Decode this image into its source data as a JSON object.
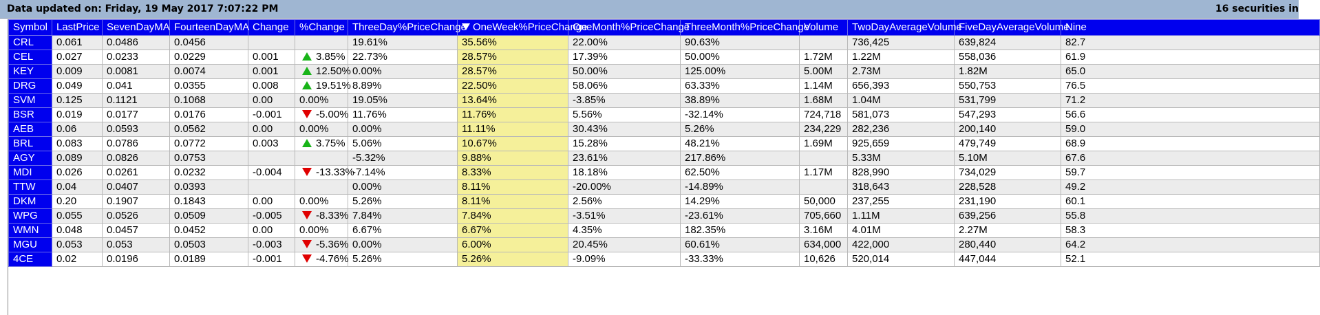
{
  "header": {
    "updated_text": "Data updated on: Friday, 19 May 2017 7:07:22 PM",
    "count_text": "16 securities in"
  },
  "colors": {
    "header_bg": "#0000ee",
    "highlight_column": "#f5f09a",
    "up_arrow": "#18b418",
    "down_arrow": "#e00000",
    "title_bar": "#9fb6d2"
  },
  "table": {
    "sorted_column": "OneWeek%PriceChange",
    "sort_direction": "descending",
    "columns": [
      "Symbol",
      "LastPrice",
      "SevenDayMA",
      "FourteenDayMA",
      "Change",
      "%Change",
      "ThreeDay%PriceChange",
      "OneWeek%PriceChange",
      "OneMonth%PriceChange",
      "ThreeMonth%PriceChange",
      "Volume",
      "TwoDayAverageVolume",
      "FiveDayAverageVolume",
      "Nine"
    ],
    "rows": [
      {
        "Symbol": "CRL",
        "LastPrice": "0.061",
        "SevenDayMA": "0.0486",
        "FourteenDayMA": "0.0456",
        "Change": "",
        "PctChange": "",
        "Dir": "",
        "ThreeDay": "19.61%",
        "OneWeek": "35.56%",
        "OneMonth": "22.00%",
        "ThreeMonth": "90.63%",
        "Volume": "",
        "TwoDayAvgVol": "736,425",
        "FiveDayAvgVol": "639,824",
        "Nine": "82.7"
      },
      {
        "Symbol": "CEL",
        "LastPrice": "0.027",
        "SevenDayMA": "0.0233",
        "FourteenDayMA": "0.0229",
        "Change": "0.001",
        "PctChange": "3.85%",
        "Dir": "up",
        "ThreeDay": "22.73%",
        "OneWeek": "28.57%",
        "OneMonth": "17.39%",
        "ThreeMonth": "50.00%",
        "Volume": "1.72M",
        "TwoDayAvgVol": "1.22M",
        "FiveDayAvgVol": "558,036",
        "Nine": "61.9"
      },
      {
        "Symbol": "KEY",
        "LastPrice": "0.009",
        "SevenDayMA": "0.0081",
        "FourteenDayMA": "0.0074",
        "Change": "0.001",
        "PctChange": "12.50%",
        "Dir": "up",
        "ThreeDay": "0.00%",
        "OneWeek": "28.57%",
        "OneMonth": "50.00%",
        "ThreeMonth": "125.00%",
        "Volume": "5.00M",
        "TwoDayAvgVol": "2.73M",
        "FiveDayAvgVol": "1.82M",
        "Nine": "65.0"
      },
      {
        "Symbol": "DRG",
        "LastPrice": "0.049",
        "SevenDayMA": "0.041",
        "FourteenDayMA": "0.0355",
        "Change": "0.008",
        "PctChange": "19.51%",
        "Dir": "up",
        "ThreeDay": "8.89%",
        "OneWeek": "22.50%",
        "OneMonth": "58.06%",
        "ThreeMonth": "63.33%",
        "Volume": "1.14M",
        "TwoDayAvgVol": "656,393",
        "FiveDayAvgVol": "550,753",
        "Nine": "76.5"
      },
      {
        "Symbol": "SVM",
        "LastPrice": "0.125",
        "SevenDayMA": "0.1121",
        "FourteenDayMA": "0.1068",
        "Change": "0.00",
        "PctChange": "0.00%",
        "Dir": "",
        "ThreeDay": "19.05%",
        "OneWeek": "13.64%",
        "OneMonth": "-3.85%",
        "ThreeMonth": "38.89%",
        "Volume": "1.68M",
        "TwoDayAvgVol": "1.04M",
        "FiveDayAvgVol": "531,799",
        "Nine": "71.2"
      },
      {
        "Symbol": "BSR",
        "LastPrice": "0.019",
        "SevenDayMA": "0.0177",
        "FourteenDayMA": "0.0176",
        "Change": "-0.001",
        "PctChange": "-5.00%",
        "Dir": "down",
        "ThreeDay": "11.76%",
        "OneWeek": "11.76%",
        "OneMonth": "5.56%",
        "ThreeMonth": "-32.14%",
        "Volume": "724,718",
        "TwoDayAvgVol": "581,073",
        "FiveDayAvgVol": "547,293",
        "Nine": "56.6"
      },
      {
        "Symbol": "AEB",
        "LastPrice": "0.06",
        "SevenDayMA": "0.0593",
        "FourteenDayMA": "0.0562",
        "Change": "0.00",
        "PctChange": "0.00%",
        "Dir": "",
        "ThreeDay": "0.00%",
        "OneWeek": "11.11%",
        "OneMonth": "30.43%",
        "ThreeMonth": "5.26%",
        "Volume": "234,229",
        "TwoDayAvgVol": "282,236",
        "FiveDayAvgVol": "200,140",
        "Nine": "59.0"
      },
      {
        "Symbol": "BRL",
        "LastPrice": "0.083",
        "SevenDayMA": "0.0786",
        "FourteenDayMA": "0.0772",
        "Change": "0.003",
        "PctChange": "3.75%",
        "Dir": "up",
        "ThreeDay": "5.06%",
        "OneWeek": "10.67%",
        "OneMonth": "15.28%",
        "ThreeMonth": "48.21%",
        "Volume": "1.69M",
        "TwoDayAvgVol": "925,659",
        "FiveDayAvgVol": "479,749",
        "Nine": "68.9"
      },
      {
        "Symbol": "AGY",
        "LastPrice": "0.089",
        "SevenDayMA": "0.0826",
        "FourteenDayMA": "0.0753",
        "Change": "",
        "PctChange": "",
        "Dir": "",
        "ThreeDay": "-5.32%",
        "OneWeek": "9.88%",
        "OneMonth": "23.61%",
        "ThreeMonth": "217.86%",
        "Volume": "",
        "TwoDayAvgVol": "5.33M",
        "FiveDayAvgVol": "5.10M",
        "Nine": "67.6"
      },
      {
        "Symbol": "MDI",
        "LastPrice": "0.026",
        "SevenDayMA": "0.0261",
        "FourteenDayMA": "0.0232",
        "Change": "-0.004",
        "PctChange": "-13.33%",
        "Dir": "down",
        "ThreeDay": "-7.14%",
        "OneWeek": "8.33%",
        "OneMonth": "18.18%",
        "ThreeMonth": "62.50%",
        "Volume": "1.17M",
        "TwoDayAvgVol": "828,990",
        "FiveDayAvgVol": "734,029",
        "Nine": "59.7"
      },
      {
        "Symbol": "TTW",
        "LastPrice": "0.04",
        "SevenDayMA": "0.0407",
        "FourteenDayMA": "0.0393",
        "Change": "",
        "PctChange": "",
        "Dir": "",
        "ThreeDay": "0.00%",
        "OneWeek": "8.11%",
        "OneMonth": "-20.00%",
        "ThreeMonth": "-14.89%",
        "Volume": "",
        "TwoDayAvgVol": "318,643",
        "FiveDayAvgVol": "228,528",
        "Nine": "49.2"
      },
      {
        "Symbol": "DKM",
        "LastPrice": "0.20",
        "SevenDayMA": "0.1907",
        "FourteenDayMA": "0.1843",
        "Change": "0.00",
        "PctChange": "0.00%",
        "Dir": "",
        "ThreeDay": "5.26%",
        "OneWeek": "8.11%",
        "OneMonth": "2.56%",
        "ThreeMonth": "14.29%",
        "Volume": "50,000",
        "TwoDayAvgVol": "237,255",
        "FiveDayAvgVol": "231,190",
        "Nine": "60.1"
      },
      {
        "Symbol": "WPG",
        "LastPrice": "0.055",
        "SevenDayMA": "0.0526",
        "FourteenDayMA": "0.0509",
        "Change": "-0.005",
        "PctChange": "-8.33%",
        "Dir": "down",
        "ThreeDay": "7.84%",
        "OneWeek": "7.84%",
        "OneMonth": "-3.51%",
        "ThreeMonth": "-23.61%",
        "Volume": "705,660",
        "TwoDayAvgVol": "1.11M",
        "FiveDayAvgVol": "639,256",
        "Nine": "55.8"
      },
      {
        "Symbol": "WMN",
        "LastPrice": "0.048",
        "SevenDayMA": "0.0457",
        "FourteenDayMA": "0.0452",
        "Change": "0.00",
        "PctChange": "0.00%",
        "Dir": "",
        "ThreeDay": "6.67%",
        "OneWeek": "6.67%",
        "OneMonth": "4.35%",
        "ThreeMonth": "182.35%",
        "Volume": "3.16M",
        "TwoDayAvgVol": "4.01M",
        "FiveDayAvgVol": "2.27M",
        "Nine": "58.3"
      },
      {
        "Symbol": "MGU",
        "LastPrice": "0.053",
        "SevenDayMA": "0.053",
        "FourteenDayMA": "0.0503",
        "Change": "-0.003",
        "PctChange": "-5.36%",
        "Dir": "down",
        "ThreeDay": "0.00%",
        "OneWeek": "6.00%",
        "OneMonth": "20.45%",
        "ThreeMonth": "60.61%",
        "Volume": "634,000",
        "TwoDayAvgVol": "422,000",
        "FiveDayAvgVol": "280,440",
        "Nine": "64.2"
      },
      {
        "Symbol": "4CE",
        "LastPrice": "0.02",
        "SevenDayMA": "0.0196",
        "FourteenDayMA": "0.0189",
        "Change": "-0.001",
        "PctChange": "-4.76%",
        "Dir": "down",
        "ThreeDay": "5.26%",
        "OneWeek": "5.26%",
        "OneMonth": "-9.09%",
        "ThreeMonth": "-33.33%",
        "Volume": "10,626",
        "TwoDayAvgVol": "520,014",
        "FiveDayAvgVol": "447,044",
        "Nine": "52.1"
      }
    ]
  }
}
